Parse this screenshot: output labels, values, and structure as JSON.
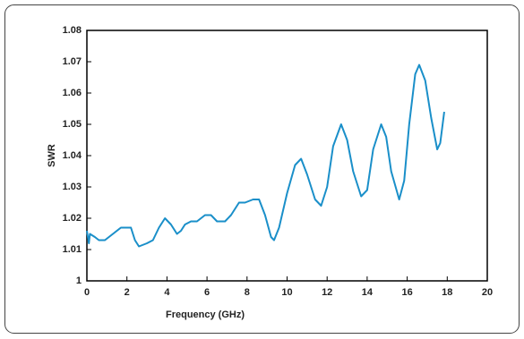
{
  "chart_data": {
    "type": "line",
    "xlabel": "Frequency (GHz)",
    "ylabel": "SWR",
    "xlim": [
      0,
      20
    ],
    "xticks": [
      0,
      2,
      4,
      6,
      8,
      10,
      12,
      14,
      16,
      18,
      20
    ],
    "ylim": [
      1,
      1.08
    ],
    "yticks": [
      1,
      1.01,
      1.02,
      1.03,
      1.04,
      1.05,
      1.06,
      1.07,
      1.08
    ],
    "series": [
      {
        "color": "#1a8fc9",
        "x": [
          0,
          0.1,
          0.15,
          0.4,
          0.6,
          0.9,
          1.3,
          1.7,
          2.2,
          2.4,
          2.6,
          3.0,
          3.3,
          3.6,
          3.9,
          4.2,
          4.5,
          4.7,
          4.9,
          5.2,
          5.5,
          5.9,
          6.2,
          6.5,
          6.9,
          7.2,
          7.6,
          7.9,
          8.3,
          8.6,
          8.9,
          9.2,
          9.35,
          9.6,
          10.0,
          10.4,
          10.7,
          11.0,
          11.4,
          11.7,
          12.0,
          12.3,
          12.7,
          13.0,
          13.3,
          13.7,
          14.0,
          14.3,
          14.7,
          14.95,
          15.2,
          15.6,
          15.85,
          16.1,
          16.4,
          16.6,
          16.9,
          17.2,
          17.5,
          17.65,
          17.85
        ],
        "values": [
          1.016,
          1.012,
          1.015,
          1.014,
          1.013,
          1.013,
          1.015,
          1.017,
          1.017,
          1.013,
          1.011,
          1.012,
          1.013,
          1.017,
          1.02,
          1.018,
          1.015,
          1.016,
          1.018,
          1.019,
          1.019,
          1.021,
          1.021,
          1.019,
          1.019,
          1.021,
          1.025,
          1.025,
          1.026,
          1.026,
          1.021,
          1.014,
          1.013,
          1.017,
          1.028,
          1.037,
          1.039,
          1.034,
          1.026,
          1.024,
          1.03,
          1.043,
          1.05,
          1.045,
          1.035,
          1.027,
          1.029,
          1.042,
          1.05,
          1.046,
          1.035,
          1.026,
          1.032,
          1.05,
          1.066,
          1.069,
          1.064,
          1.052,
          1.042,
          1.044,
          1.054
        ]
      }
    ]
  }
}
